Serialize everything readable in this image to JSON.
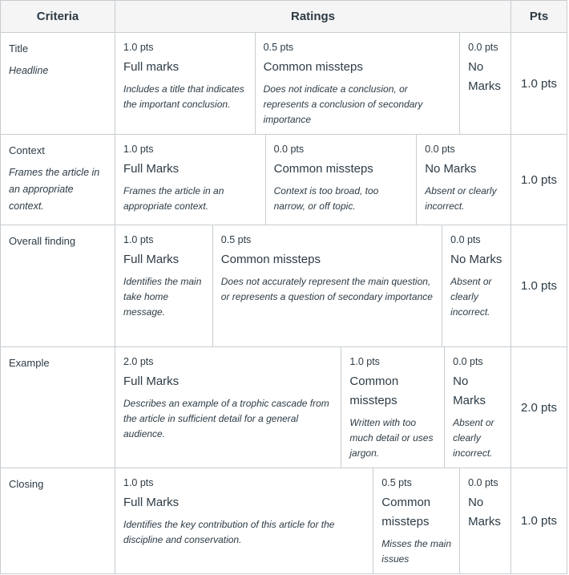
{
  "header": {
    "criteria": "Criteria",
    "ratings": "Ratings",
    "pts": "Pts"
  },
  "rows": [
    {
      "title": "Title",
      "description": "Headline",
      "points": "1.0 pts",
      "ratings": [
        {
          "pts": "1.0 pts",
          "title": "Full marks",
          "desc": "Includes a title that indicates the important conclusion."
        },
        {
          "pts": "0.5 pts",
          "title": "Common missteps",
          "desc": "Does not indicate a conclusion, or represents a conclusion of secondary importance"
        },
        {
          "pts": "0.0 pts",
          "title": "No Marks",
          "desc": ""
        }
      ]
    },
    {
      "title": "Context",
      "description": "Frames the article in an appropriate context.",
      "points": "1.0 pts",
      "ratings": [
        {
          "pts": "1.0 pts",
          "title": "Full Marks",
          "desc": "Frames the article in an appropriate context."
        },
        {
          "pts": "0.0 pts",
          "title": "Common missteps",
          "desc": "Context is too broad, too narrow, or off topic."
        },
        {
          "pts": "0.0 pts",
          "title": "No Marks",
          "desc": "Absent or clearly incorrect."
        }
      ]
    },
    {
      "title": "Overall finding",
      "description": "",
      "points": "1.0 pts",
      "ratings": [
        {
          "pts": "1.0 pts",
          "title": "Full Marks",
          "desc": "Identifies the main take home message."
        },
        {
          "pts": "0.5 pts",
          "title": "Common missteps",
          "desc": "Does not accurately represent the main question, or represents a question of secondary importance"
        },
        {
          "pts": "0.0 pts",
          "title": "No Marks",
          "desc": "Absent or clearly incorrect."
        }
      ]
    },
    {
      "title": "Example",
      "description": "",
      "points": "2.0 pts",
      "ratings": [
        {
          "pts": "2.0 pts",
          "title": "Full Marks",
          "desc": "Describes an example of a trophic cascade from the article in sufficient detail for a general audience."
        },
        {
          "pts": "1.0 pts",
          "title": "Common missteps",
          "desc": "Written with too much detail or uses jargon."
        },
        {
          "pts": "0.0 pts",
          "title": "No Marks",
          "desc": "Absent or clearly incorrect."
        }
      ]
    },
    {
      "title": "Closing",
      "description": "",
      "points": "1.0 pts",
      "ratings": [
        {
          "pts": "1.0 pts",
          "title": "Full Marks",
          "desc": "Identifies the key contribution of this article for the discipline and conservation."
        },
        {
          "pts": "0.5 pts",
          "title": "Common missteps",
          "desc": "Misses the main issues"
        },
        {
          "pts": "0.0 pts",
          "title": "No Marks",
          "desc": ""
        }
      ]
    }
  ]
}
